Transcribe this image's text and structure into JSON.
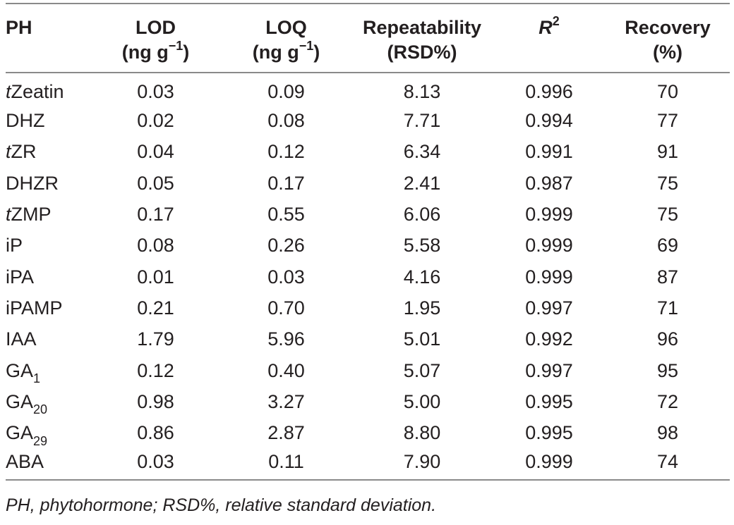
{
  "table": {
    "headers": [
      {
        "line1": "PH",
        "line2": ""
      },
      {
        "line1": "LOD",
        "line2_pre": "(ng g",
        "line2_sup": "−1",
        "line2_post": ")"
      },
      {
        "line1": "LOQ",
        "line2_pre": "(ng g",
        "line2_sup": "−1",
        "line2_post": ")"
      },
      {
        "line1": "Repeatability",
        "line2": "(RSD%)"
      },
      {
        "line1_italic": "R",
        "line1_sup": "2"
      },
      {
        "line1": "Recovery",
        "line2": "(%)"
      }
    ],
    "rows": [
      {
        "ph_pre_italic": "t",
        "ph_main": "Zeatin",
        "ph_sub": "",
        "lod": "0.03",
        "loq": "0.09",
        "repeatability": "8.13",
        "r2": "0.996",
        "recovery": "70"
      },
      {
        "ph_pre_italic": "",
        "ph_main": "DHZ",
        "ph_sub": "",
        "lod": "0.02",
        "loq": "0.08",
        "repeatability": "7.71",
        "r2": "0.994",
        "recovery": "77"
      },
      {
        "ph_pre_italic": "t",
        "ph_main": "ZR",
        "ph_sub": "",
        "lod": "0.04",
        "loq": "0.12",
        "repeatability": "6.34",
        "r2": "0.991",
        "recovery": "91"
      },
      {
        "ph_pre_italic": "",
        "ph_main": "DHZR",
        "ph_sub": "",
        "lod": "0.05",
        "loq": "0.17",
        "repeatability": "2.41",
        "r2": "0.987",
        "recovery": "75"
      },
      {
        "ph_pre_italic": "t",
        "ph_main": "ZMP",
        "ph_sub": "",
        "lod": "0.17",
        "loq": "0.55",
        "repeatability": "6.06",
        "r2": "0.999",
        "recovery": "75"
      },
      {
        "ph_pre_italic": "",
        "ph_main": "iP",
        "ph_sub": "",
        "lod": "0.08",
        "loq": "0.26",
        "repeatability": "5.58",
        "r2": "0.999",
        "recovery": "69"
      },
      {
        "ph_pre_italic": "",
        "ph_main": "iPA",
        "ph_sub": "",
        "lod": "0.01",
        "loq": "0.03",
        "repeatability": "4.16",
        "r2": "0.999",
        "recovery": "87"
      },
      {
        "ph_pre_italic": "",
        "ph_main": "iPAMP",
        "ph_sub": "",
        "lod": "0.21",
        "loq": "0.70",
        "repeatability": "1.95",
        "r2": "0.997",
        "recovery": "71"
      },
      {
        "ph_pre_italic": "",
        "ph_main": "IAA",
        "ph_sub": "",
        "lod": "1.79",
        "loq": "5.96",
        "repeatability": "5.01",
        "r2": "0.992",
        "recovery": "96"
      },
      {
        "ph_pre_italic": "",
        "ph_main": "GA",
        "ph_sub": "1",
        "lod": "0.12",
        "loq": "0.40",
        "repeatability": "5.07",
        "r2": "0.997",
        "recovery": "95"
      },
      {
        "ph_pre_italic": "",
        "ph_main": "GA",
        "ph_sub": "20",
        "lod": "0.98",
        "loq": "3.27",
        "repeatability": "5.00",
        "r2": "0.995",
        "recovery": "72"
      },
      {
        "ph_pre_italic": "",
        "ph_main": "GA",
        "ph_sub": "29",
        "lod": "0.86",
        "loq": "2.87",
        "repeatability": "8.80",
        "r2": "0.995",
        "recovery": "98"
      },
      {
        "ph_pre_italic": "",
        "ph_main": "ABA",
        "ph_sub": "",
        "lod": "0.03",
        "loq": "0.11",
        "repeatability": "7.90",
        "r2": "0.999",
        "recovery": "74"
      }
    ]
  },
  "footnote": "PH, phytohormone; RSD%, relative standard deviation."
}
